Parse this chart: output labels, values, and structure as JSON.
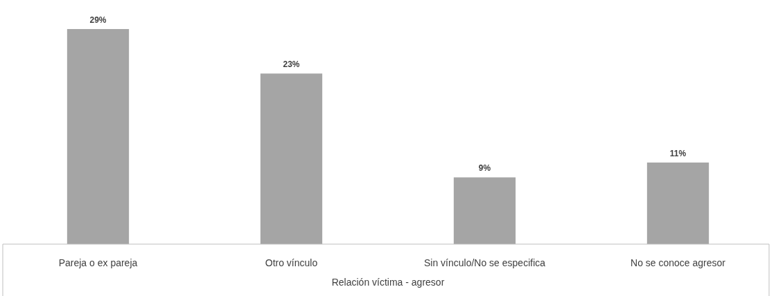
{
  "chart_data": {
    "type": "bar",
    "xlabel": "Relación víctima - agresor",
    "categories": [
      "Pareja o ex pareja",
      "Otro vínculo",
      "Sin vínculo/No se especifica",
      "No se conoce agresor"
    ],
    "values": [
      29,
      23,
      9,
      11
    ],
    "value_labels": [
      "29%",
      "23%",
      "9%",
      "11%"
    ],
    "color": "#a5a5a5"
  }
}
